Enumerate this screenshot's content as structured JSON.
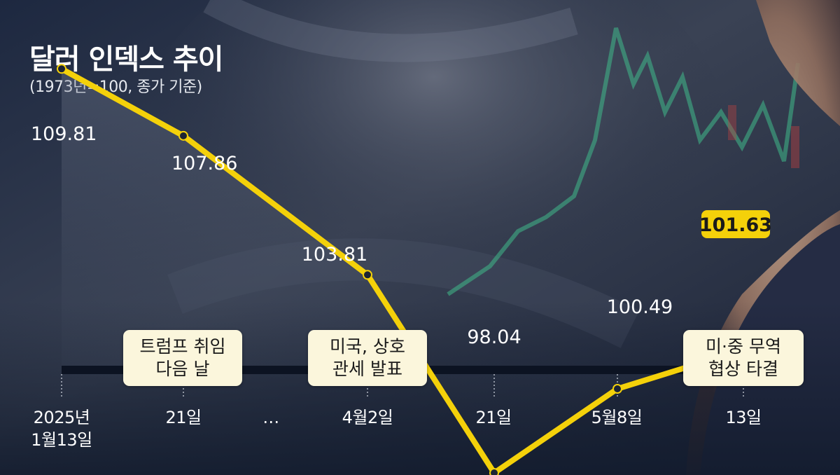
{
  "title": "달러 인덱스 추이",
  "subtitle": "(1973년=100, 종가 기준)",
  "colors": {
    "line": "#f4d10a",
    "highlight_fill": "#f4d10a",
    "point": "#1c2433",
    "text": "#ffffff",
    "event_box": "#fbf6dc",
    "baseline": "#0c1322"
  },
  "chart_data": {
    "type": "line",
    "title": "달러 인덱스 추이",
    "subtitle": "(1973년=100, 종가 기준)",
    "xlabel": "",
    "ylabel": "",
    "categories": [
      "2025년 1월13일",
      "21일",
      "4월2일",
      "21일",
      "5월8일",
      "13일"
    ],
    "gap_label": "…",
    "values": [
      109.81,
      107.86,
      103.81,
      98.04,
      100.49,
      101.63
    ],
    "value_labels": [
      "109.81",
      "107.86",
      "103.81",
      "98.04",
      "100.49",
      "101.63"
    ],
    "highlight_last": true,
    "last_point_marker": "arrow",
    "ylim": [
      97,
      111
    ],
    "grid": false,
    "legend": "none"
  },
  "x_labels": {
    "d0_line1": "2025년",
    "d0_line2": "1월13일",
    "d1": "21일",
    "gap": "…",
    "d2": "4월2일",
    "d3": "21일",
    "d4": "5월8일",
    "d5": "13일"
  },
  "events": [
    {
      "line1": "트럼프 취임",
      "line2": "다음 날"
    },
    {
      "line1": "미국, 상호",
      "line2": "관세 발표"
    },
    {
      "line1": "미·중 무역",
      "line2": "협상 타결"
    }
  ]
}
